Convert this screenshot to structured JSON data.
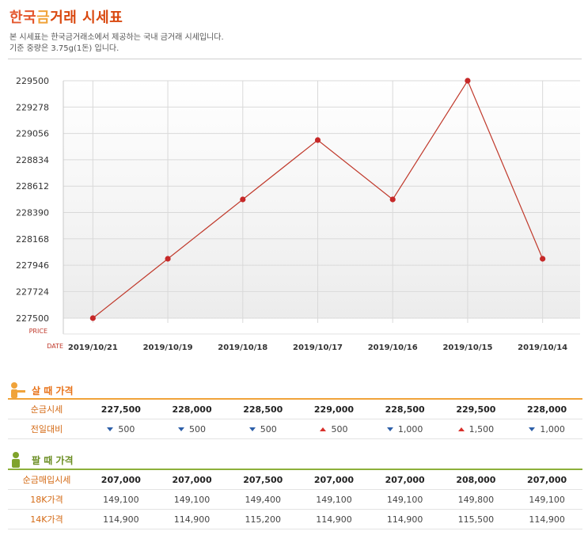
{
  "header": {
    "title_part1": "한국",
    "title_part2": "금",
    "title_part3": "거래 시세표",
    "desc_line1": "본 시세표는 한국금거래소에서 제공하는 국내 금거래 시세입니다.",
    "desc_line2": "기준 중량은 3.75g(1돈) 입니다."
  },
  "chart_data": {
    "type": "line",
    "categories": [
      "2019/10/21",
      "2019/10/19",
      "2019/10/18",
      "2019/10/17",
      "2019/10/16",
      "2019/10/15",
      "2019/10/14"
    ],
    "values": [
      227500,
      228000,
      228500,
      229000,
      228500,
      229500,
      228000
    ],
    "ylim": [
      227500,
      229500
    ],
    "yticks": [
      229500,
      229278,
      229056,
      228834,
      228612,
      228390,
      228168,
      227946,
      227724,
      227500
    ],
    "ylabel": "PRICE",
    "xlabel": "DATE",
    "grid": true,
    "line_color": "#c0392b"
  },
  "buy": {
    "title": "살 때 가격",
    "rows": [
      {
        "label": "순금시세",
        "cells": [
          "227,500",
          "228,000",
          "228,500",
          "229,000",
          "228,500",
          "229,500",
          "228,000"
        ]
      },
      {
        "label": "전일대비",
        "cells": [
          "500",
          "500",
          "500",
          "500",
          "1,000",
          "1,500",
          "1,000"
        ],
        "dirs": [
          "down",
          "down",
          "down",
          "up",
          "down",
          "up",
          "down"
        ]
      }
    ]
  },
  "sell": {
    "title": "팔 때 가격",
    "rows": [
      {
        "label": "순금매입시세",
        "cells": [
          "207,000",
          "207,000",
          "207,500",
          "207,000",
          "207,000",
          "208,000",
          "207,000"
        ]
      },
      {
        "label": "18K가격",
        "cells": [
          "149,100",
          "149,100",
          "149,400",
          "149,100",
          "149,100",
          "149,800",
          "149,100"
        ]
      },
      {
        "label": "14K가격",
        "cells": [
          "114,900",
          "114,900",
          "115,200",
          "114,900",
          "114,900",
          "115,500",
          "114,900"
        ]
      }
    ]
  },
  "colors": {
    "accent_orange": "#e8731a",
    "accent_green": "#6b8e23",
    "up": "#d8302a",
    "down": "#2d5fa8"
  }
}
